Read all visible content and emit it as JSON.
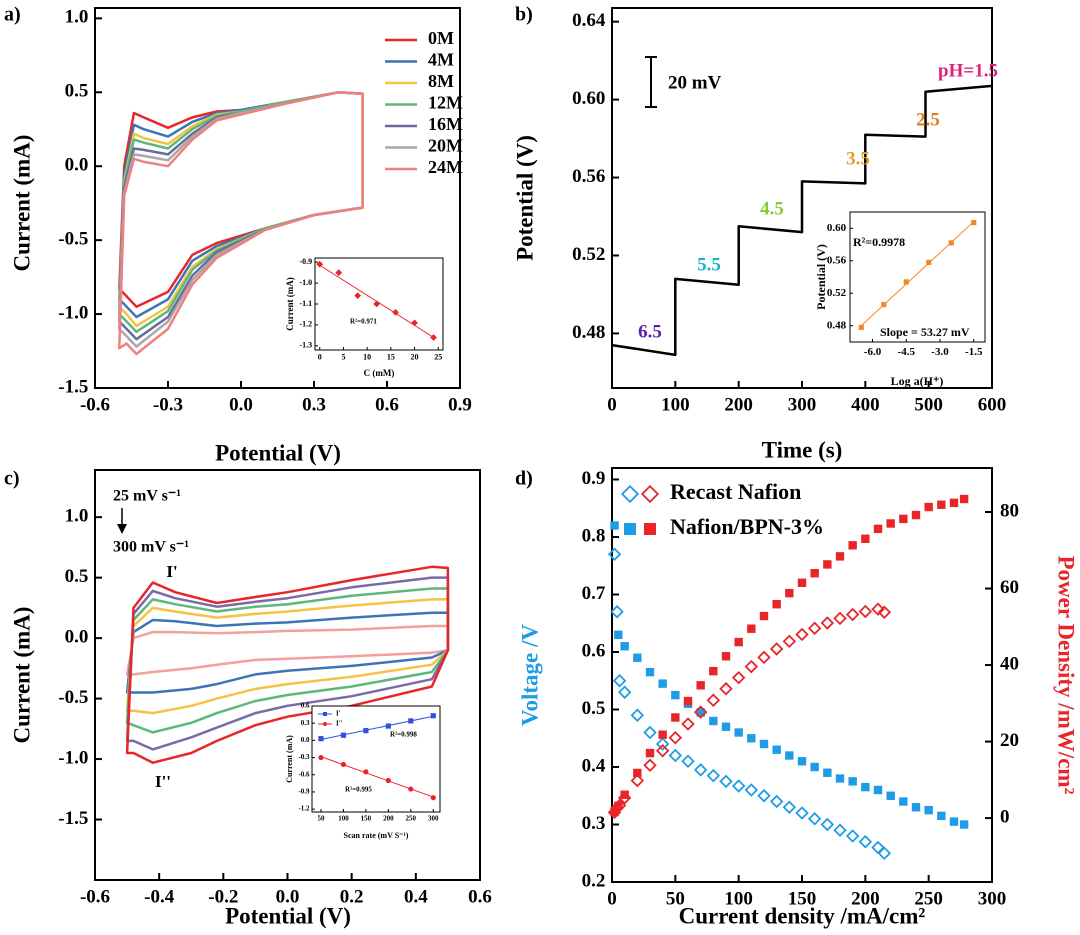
{
  "chart_data": [
    {
      "type": "line",
      "panel_label": "a)",
      "xlabel": "Potential (V)",
      "ylabel": "Current (mA)",
      "closed": true,
      "legend": "upper right",
      "xlim": [
        -0.6,
        0.9
      ],
      "ylim": [
        -1.5,
        1.07
      ],
      "xticks": [
        -0.6,
        -0.3,
        {
          "value": 0,
          "label": "0.0"
        },
        0.3,
        0.6,
        0.9
      ],
      "yticks": [
        {
          "value": 1,
          "label": "1.0"
        },
        0.5,
        {
          "value": 0,
          "label": "0.0"
        },
        -0.5,
        {
          "value": -1,
          "label": "-1.0"
        },
        -1.5
      ],
      "x": [
        -0.5,
        -0.48,
        -0.44,
        -0.4,
        -0.3,
        -0.2,
        -0.1,
        0.0,
        0.2,
        0.4,
        0.5,
        0.5,
        0.3,
        0.1,
        -0.1,
        -0.2,
        -0.3,
        -0.43,
        -0.47
      ],
      "series": [
        {
          "name": "0M",
          "color": "#e8262a",
          "values": [
            -0.83,
            0.0,
            0.36,
            0.33,
            0.26,
            0.33,
            0.37,
            0.38,
            0.44,
            0.5,
            0.49,
            -0.28,
            -0.33,
            -0.42,
            -0.52,
            -0.6,
            -0.85,
            -0.95,
            -0.88
          ]
        },
        {
          "name": "4M",
          "color": "#3d74b6",
          "values": [
            -0.9,
            -0.05,
            0.28,
            0.25,
            0.2,
            0.3,
            0.36,
            0.38,
            0.44,
            0.5,
            0.49,
            -0.28,
            -0.33,
            -0.42,
            -0.54,
            -0.64,
            -0.9,
            -1.02,
            -0.95
          ]
        },
        {
          "name": "8M",
          "color": "#f5c242",
          "values": [
            -0.95,
            -0.1,
            0.22,
            0.19,
            0.15,
            0.27,
            0.35,
            0.37,
            0.44,
            0.5,
            0.49,
            -0.28,
            -0.33,
            -0.42,
            -0.56,
            -0.68,
            -0.95,
            -1.08,
            -1.0
          ]
        },
        {
          "name": "12M",
          "color": "#5cb87a",
          "values": [
            -1.0,
            -0.12,
            0.18,
            0.16,
            0.12,
            0.25,
            0.34,
            0.37,
            0.44,
            0.5,
            0.49,
            -0.28,
            -0.33,
            -0.42,
            -0.57,
            -0.7,
            -0.98,
            -1.12,
            -1.05
          ]
        },
        {
          "name": "16M",
          "color": "#6a6a9e",
          "values": [
            -1.05,
            -0.15,
            0.12,
            0.11,
            0.08,
            0.22,
            0.33,
            0.36,
            0.43,
            0.5,
            0.49,
            -0.28,
            -0.33,
            -0.43,
            -0.58,
            -0.74,
            -1.02,
            -1.17,
            -1.1
          ]
        },
        {
          "name": "20M",
          "color": "#a8a8a8",
          "values": [
            -1.1,
            -0.18,
            0.08,
            0.07,
            0.04,
            0.2,
            0.32,
            0.36,
            0.43,
            0.5,
            0.49,
            -0.28,
            -0.33,
            -0.43,
            -0.6,
            -0.77,
            -1.05,
            -1.22,
            -1.15
          ]
        },
        {
          "name": "24M",
          "color": "#f08080",
          "values": [
            -1.23,
            -0.2,
            0.05,
            0.03,
            0.0,
            0.18,
            0.31,
            0.35,
            0.43,
            0.5,
            0.49,
            -0.28,
            -0.33,
            -0.43,
            -0.62,
            -0.8,
            -1.1,
            -1.27,
            -1.2
          ]
        }
      ],
      "inset": {
        "type": "scatter",
        "xlabel": "C (mM)",
        "ylabel": "Current (mA)",
        "fit": true,
        "xlim": [
          -1,
          26
        ],
        "ylim": [
          -1.32,
          -0.88
        ],
        "xticks": [
          0,
          5,
          10,
          15,
          20,
          25
        ],
        "yticks": [
          -0.9,
          {
            "value": -1,
            "label": "-1.0"
          },
          -1.1,
          -1.2,
          -1.3
        ],
        "annotations": [
          {
            "text": "R²=0.971",
            "color": "#000000"
          }
        ],
        "series": [
          {
            "color": "#e8262a",
            "marker": "diamond",
            "x": [
              0,
              4,
              8,
              12,
              16,
              20,
              24
            ],
            "values": [
              -0.91,
              -0.95,
              -1.06,
              -1.1,
              -1.14,
              -1.19,
              -1.26
            ]
          }
        ]
      }
    },
    {
      "type": "line",
      "panel_label": "b)",
      "xlabel": "Time (s)",
      "ylabel": "Potential (V)",
      "xlim": [
        0,
        600
      ],
      "ylim": [
        0.452,
        0.647
      ],
      "xticks": [
        0,
        100,
        200,
        300,
        400,
        500,
        600
      ],
      "yticks": [
        0.48,
        0.52,
        0.56,
        {
          "value": 0.6,
          "label": "0.60"
        },
        0.64
      ],
      "x": [
        0,
        100,
        100,
        200,
        200,
        300,
        300,
        400,
        400,
        495,
        495,
        600
      ],
      "series": [
        {
          "color": "#000000",
          "values": [
            0.474,
            0.469,
            0.508,
            0.505,
            0.535,
            0.532,
            0.558,
            0.557,
            0.582,
            0.581,
            0.604,
            0.607
          ]
        }
      ],
      "annotations": [
        {
          "text": "20 mV",
          "color": "#000000"
        },
        {
          "text": "6.5",
          "color": "#5a1fb0"
        },
        {
          "text": "5.5",
          "color": "#18b4c0"
        },
        {
          "text": "4.5",
          "color": "#8ac730"
        },
        {
          "text": "3.5",
          "color": "#e0a020"
        },
        {
          "text": "2.5",
          "color": "#e57a1f"
        },
        {
          "text": "pH=1.5",
          "color": "#e0207a"
        }
      ],
      "inset": {
        "type": "scatter",
        "xlabel": "Log a(H⁺)",
        "ylabel": "Potential (V)",
        "fit": true,
        "xlim": [
          -7,
          -1
        ],
        "ylim": [
          0.46,
          0.62
        ],
        "xticks": [
          {
            "value": -6,
            "label": "-6.0"
          },
          -4.5,
          {
            "value": -3,
            "label": "-3.0"
          },
          -1.5
        ],
        "yticks": [
          0.48,
          0.52,
          0.56,
          {
            "value": 0.6,
            "label": "0.60"
          }
        ],
        "annotations": [
          {
            "text": "R²=0.9978",
            "color": "#000000"
          },
          {
            "text": "Slope = 53.27 mV",
            "color": "#000000"
          }
        ],
        "series": [
          {
            "color": "#f08a24",
            "marker": "square",
            "x": [
              -6.5,
              -5.5,
              -4.5,
              -3.5,
              -2.5,
              -1.5
            ],
            "values": [
              0.478,
              0.506,
              0.534,
              0.558,
              0.582,
              0.607
            ]
          }
        ]
      }
    },
    {
      "type": "line",
      "panel_label": "c)",
      "xlabel": "Potential (V)",
      "ylabel": "Current (mA)",
      "closed": true,
      "xlim": [
        -0.6,
        0.6
      ],
      "ylim": [
        -2.0,
        1.39
      ],
      "xticks": [
        -0.6,
        -0.4,
        -0.2,
        {
          "value": 0,
          "label": "0.0"
        },
        0.2,
        0.4,
        0.6
      ],
      "yticks": [
        {
          "value": 1,
          "label": "1.0"
        },
        0.5,
        {
          "value": 0,
          "label": "0.0"
        },
        -0.5,
        {
          "value": -1,
          "label": "-1.0"
        },
        -1.5
      ],
      "x": [
        -0.5,
        -0.48,
        -0.42,
        -0.35,
        -0.22,
        -0.1,
        0.0,
        0.2,
        0.45,
        0.5,
        0.5,
        0.45,
        0.2,
        0.0,
        -0.1,
        -0.22,
        -0.3,
        -0.42,
        -0.48
      ],
      "series": [
        {
          "color": "#f4a09c",
          "values": [
            -0.3,
            0.0,
            0.05,
            0.05,
            0.04,
            0.05,
            0.06,
            0.07,
            0.1,
            0.1,
            -0.1,
            -0.12,
            -0.15,
            -0.17,
            -0.18,
            -0.22,
            -0.25,
            -0.28,
            -0.3
          ]
        },
        {
          "color": "#3d74b6",
          "values": [
            -0.45,
            0.05,
            0.15,
            0.14,
            0.1,
            0.12,
            0.13,
            0.17,
            0.21,
            0.21,
            -0.1,
            -0.16,
            -0.23,
            -0.27,
            -0.3,
            -0.38,
            -0.42,
            -0.45,
            -0.45
          ]
        },
        {
          "color": "#f5c242",
          "values": [
            -0.6,
            0.1,
            0.25,
            0.22,
            0.17,
            0.2,
            0.22,
            0.27,
            0.32,
            0.32,
            -0.1,
            -0.22,
            -0.32,
            -0.38,
            -0.42,
            -0.5,
            -0.56,
            -0.62,
            -0.6
          ]
        },
        {
          "color": "#5cb87a",
          "values": [
            -0.7,
            0.15,
            0.32,
            0.28,
            0.22,
            0.26,
            0.28,
            0.35,
            0.41,
            0.41,
            -0.1,
            -0.28,
            -0.4,
            -0.47,
            -0.52,
            -0.62,
            -0.7,
            -0.78,
            -0.72
          ]
        },
        {
          "color": "#7a6aa8",
          "values": [
            -0.85,
            0.2,
            0.39,
            0.33,
            0.26,
            0.3,
            0.33,
            0.42,
            0.5,
            0.5,
            -0.1,
            -0.34,
            -0.48,
            -0.56,
            -0.62,
            -0.74,
            -0.82,
            -0.92,
            -0.85
          ]
        },
        {
          "color": "#e8262a",
          "values": [
            -0.95,
            0.25,
            0.46,
            0.38,
            0.29,
            0.34,
            0.38,
            0.48,
            0.59,
            0.58,
            -0.1,
            -0.4,
            -0.56,
            -0.65,
            -0.72,
            -0.85,
            -0.95,
            -1.03,
            -0.95
          ]
        }
      ],
      "annotations": [
        {
          "text": "25 mV s⁻¹",
          "color": "#000000"
        },
        {
          "text": "300 mV s⁻¹",
          "color": "#000000"
        },
        {
          "text": "I'",
          "color": "#000000"
        },
        {
          "text": "I''",
          "color": "#000000"
        }
      ],
      "inset": {
        "type": "scatter",
        "xlabel": "Scan rate (mV S⁻¹)",
        "ylabel": "Current (mA)",
        "fit": true,
        "legend": "upper left",
        "xlim": [
          30,
          315
        ],
        "ylim": [
          -1.25,
          0.6
        ],
        "xticks": [
          50,
          100,
          150,
          200,
          250,
          300
        ],
        "yticks": [
          0.6,
          0.3,
          {
            "value": 0,
            "label": "0.0"
          },
          -0.3,
          -0.6,
          -0.9,
          -1.2
        ],
        "annotations": [
          {
            "text": "R²=0.998",
            "color": "#000000"
          },
          {
            "text": "R²=0.995",
            "color": "#000000"
          }
        ],
        "series": [
          {
            "name": "I'",
            "color": "#3050e0",
            "marker": "square",
            "x": [
              50,
              100,
              150,
              200,
              250,
              300
            ],
            "values": [
              0.03,
              0.09,
              0.17,
              0.25,
              0.34,
              0.43
            ]
          },
          {
            "name": "I''",
            "color": "#e8262a",
            "marker": "circle",
            "x": [
              50,
              100,
              150,
              200,
              250,
              300
            ],
            "values": [
              -0.3,
              -0.42,
              -0.55,
              -0.7,
              -0.85,
              -1.0
            ]
          }
        ]
      }
    },
    {
      "type": "scatter",
      "panel_label": "d)",
      "xlabel": "Current density /mA/cm²",
      "ylabel": "Voltage /V",
      "y2label": "Power Density /mW/cm²",
      "ylabel_color": "#1e9ce8",
      "y2label_color": "#e8262a",
      "legend": "upper left",
      "xlim": [
        0,
        300
      ],
      "ylim": [
        0.2,
        0.92
      ],
      "y2lim": [
        -16.7,
        91.5
      ],
      "xticks": [
        0,
        50,
        100,
        150,
        200,
        250,
        300
      ],
      "yticks": [
        0.2,
        0.3,
        0.4,
        0.5,
        0.6,
        0.7,
        0.8,
        0.9
      ],
      "y2ticks": [
        0,
        20,
        40,
        60,
        80
      ],
      "series": [
        {
          "name": "Recast Nafion",
          "color": "#1e9ce8",
          "marker": "diamond-open",
          "x": [
            2,
            4,
            6,
            10,
            20,
            30,
            40,
            50,
            60,
            70,
            80,
            90,
            100,
            110,
            120,
            130,
            140,
            150,
            160,
            170,
            180,
            190,
            200,
            210,
            215
          ],
          "values": [
            0.77,
            0.67,
            0.55,
            0.53,
            0.49,
            0.46,
            0.44,
            0.42,
            0.41,
            0.395,
            0.385,
            0.375,
            0.367,
            0.36,
            0.35,
            0.34,
            0.33,
            0.32,
            0.31,
            0.3,
            0.29,
            0.28,
            0.27,
            0.26,
            0.25
          ]
        },
        {
          "name": "Nafion/BPN-3%",
          "color": "#1e9ce8",
          "marker": "square",
          "x": [
            2,
            5,
            10,
            20,
            30,
            40,
            50,
            60,
            70,
            80,
            90,
            100,
            110,
            120,
            130,
            140,
            150,
            160,
            170,
            180,
            190,
            200,
            210,
            220,
            230,
            240,
            250,
            260,
            270,
            278
          ],
          "values": [
            0.82,
            0.63,
            0.61,
            0.59,
            0.565,
            0.545,
            0.525,
            0.51,
            0.495,
            0.48,
            0.47,
            0.46,
            0.45,
            0.44,
            0.43,
            0.42,
            0.41,
            0.4,
            0.39,
            0.38,
            0.375,
            0.365,
            0.36,
            0.35,
            0.34,
            0.33,
            0.325,
            0.315,
            0.305,
            0.3
          ]
        },
        {
          "color": "#e8262a",
          "marker": "diamond-open",
          "axis": "y2",
          "x": [
            2,
            4,
            6,
            10,
            20,
            30,
            40,
            50,
            60,
            70,
            80,
            90,
            100,
            110,
            120,
            130,
            140,
            150,
            160,
            170,
            180,
            190,
            200,
            210,
            215
          ],
          "values": [
            1.5,
            2.7,
            3.3,
            5.3,
            9.8,
            13.8,
            17.6,
            21,
            24.6,
            27.7,
            30.8,
            33.8,
            36.7,
            39.6,
            42,
            44.2,
            46.2,
            48,
            49.6,
            51,
            52.2,
            53.2,
            54,
            54.6,
            53.8
          ]
        },
        {
          "color": "#e8262a",
          "marker": "square",
          "axis": "y2",
          "x": [
            2,
            5,
            10,
            20,
            30,
            40,
            50,
            60,
            70,
            80,
            90,
            100,
            110,
            120,
            130,
            140,
            150,
            160,
            170,
            180,
            190,
            200,
            210,
            220,
            230,
            240,
            250,
            260,
            270,
            278
          ],
          "values": [
            1.6,
            3.2,
            6.1,
            11.8,
            17,
            21.8,
            26.3,
            30.6,
            34.7,
            38.4,
            42.3,
            46,
            49.5,
            52.8,
            55.9,
            58.8,
            61.5,
            64,
            66.3,
            68.4,
            71.3,
            73,
            75.6,
            77,
            78.2,
            79.2,
            81.3,
            81.9,
            82.4,
            83.4
          ]
        }
      ]
    }
  ]
}
